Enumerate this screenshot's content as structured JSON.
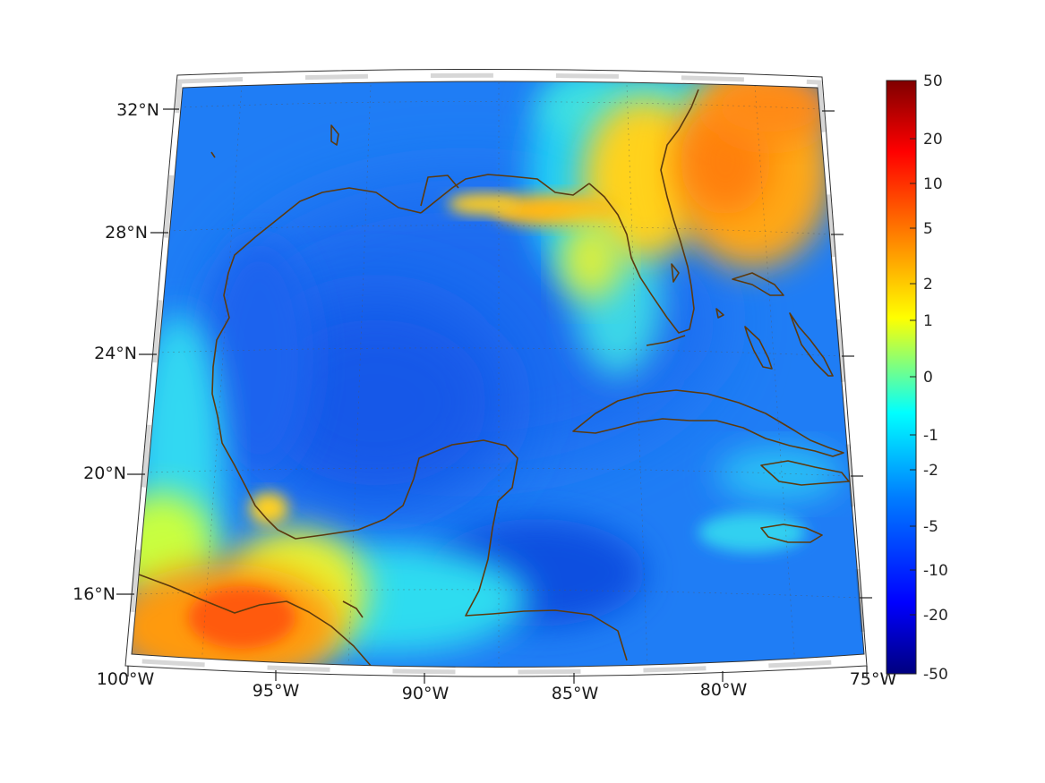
{
  "map": {
    "projection": "conic",
    "region": "Gulf of Mexico and Caribbean",
    "lon_range": [
      -100,
      -75
    ],
    "lat_range": [
      14,
      33
    ],
    "coastline_color": "#5c3a0e",
    "grid": "dotted",
    "lat_ticks": [
      {
        "value": 32,
        "label": "32°N"
      },
      {
        "value": 28,
        "label": "28°N"
      },
      {
        "value": 24,
        "label": "24°N"
      },
      {
        "value": 20,
        "label": "20°N"
      },
      {
        "value": 16,
        "label": "16°N"
      }
    ],
    "lon_ticks": [
      {
        "value": -100,
        "label": "100°W"
      },
      {
        "value": -95,
        "label": "95°W"
      },
      {
        "value": -90,
        "label": "90°W"
      },
      {
        "value": -85,
        "label": "85°W"
      },
      {
        "value": -80,
        "label": "80°W"
      },
      {
        "value": -75,
        "label": "75°W"
      }
    ]
  },
  "colorbar": {
    "colormap": "jet",
    "colors": [
      "#00007f",
      "#0000ff",
      "#007fff",
      "#00ffff",
      "#7fff7f",
      "#ffff00",
      "#ff7f00",
      "#ff0000",
      "#7f0000"
    ],
    "ticks": [
      "50",
      "20",
      "10",
      "5",
      "2",
      "1",
      "0",
      "-1",
      "-2",
      "-5",
      "-10",
      "-20",
      "-50"
    ]
  }
}
